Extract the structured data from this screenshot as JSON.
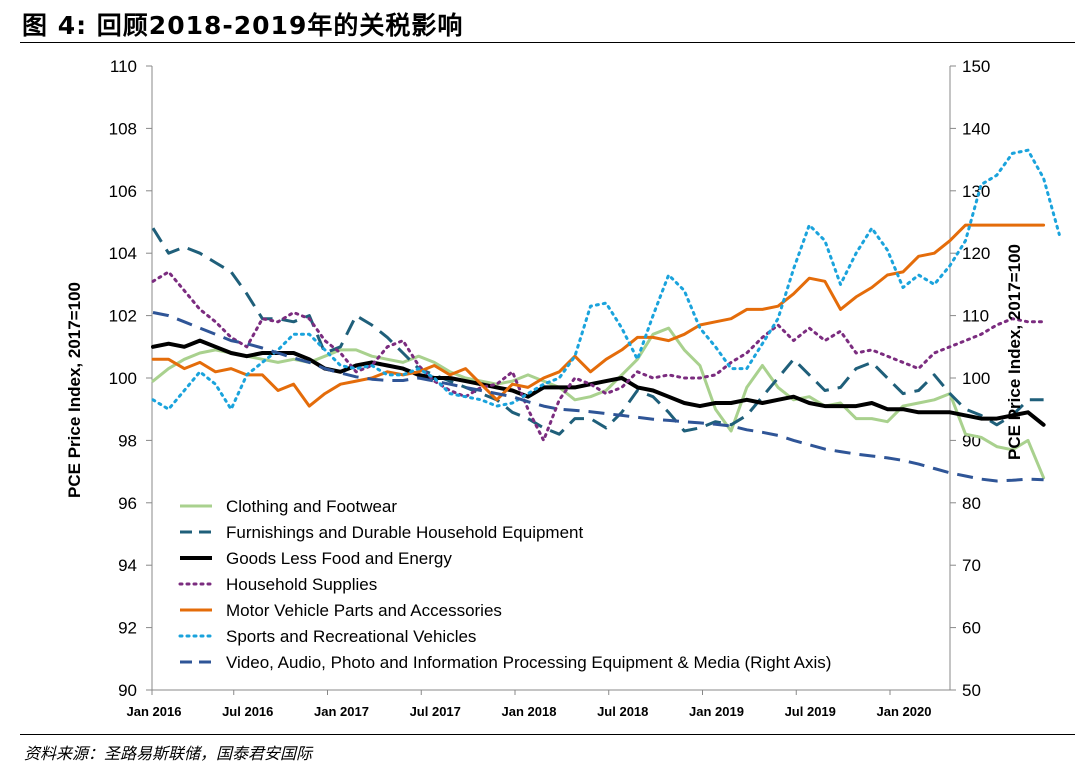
{
  "figure": {
    "title": "图 4:  回顾2018-2019年的关税影响",
    "source": "资料来源：圣路易斯联储，国泰君安国际"
  },
  "chart_data": {
    "type": "line",
    "ylabel": "PCE Price Index, 2017=100",
    "y2label": "PCE Price Index, 2017=100",
    "ylim": [
      90,
      110
    ],
    "y2lim": [
      50,
      150
    ],
    "yticks": [
      "90",
      "92",
      "94",
      "96",
      "98",
      "100",
      "102",
      "104",
      "106",
      "108",
      "110"
    ],
    "y2ticks": [
      "50",
      "60",
      "70",
      "80",
      "90",
      "100",
      "110",
      "120",
      "130",
      "140",
      "150"
    ],
    "x_ticks": [
      "Jan 2016",
      "Jul 2016",
      "Jan 2017",
      "Jul 2017",
      "Jan 2018",
      "Jul 2018",
      "Jan 2019",
      "Jul 2019",
      "Jan 2020"
    ],
    "x_start": "Jan 2016",
    "x_end": "Apr 2020",
    "legend_position": "lower-left",
    "series": [
      {
        "name": "Clothing and Footwear",
        "axis": "left",
        "color": "#a9d18e",
        "style": "solid",
        "width": 3,
        "values": [
          99.9,
          100.3,
          100.6,
          100.8,
          100.9,
          100.8,
          100.7,
          100.6,
          100.5,
          100.6,
          100.5,
          100.7,
          100.9,
          100.9,
          100.7,
          100.6,
          100.5,
          100.7,
          100.5,
          100.2,
          100.0,
          99.9,
          99.8,
          99.9,
          100.1,
          99.9,
          99.7,
          99.3,
          99.4,
          99.6,
          100.1,
          100.6,
          101.4,
          101.6,
          100.9,
          100.4,
          99.0,
          98.3,
          99.7,
          100.4,
          99.7,
          99.3,
          99.4,
          99.1,
          99.2,
          98.7,
          98.7,
          98.6,
          99.1,
          99.2,
          99.3,
          99.5,
          98.2,
          98.1,
          97.8,
          97.7,
          98.0,
          96.8
        ]
      },
      {
        "name": "Furnishings and Durable Household Equipment",
        "axis": "left",
        "color": "#1f5f7a",
        "style": "dash",
        "width": 3,
        "values": [
          104.8,
          104.0,
          104.2,
          104.0,
          103.7,
          103.4,
          102.7,
          101.9,
          101.9,
          101.8,
          102.0,
          100.8,
          101.0,
          102.0,
          101.7,
          101.3,
          100.8,
          100.3,
          100.1,
          99.9,
          99.7,
          99.5,
          99.3,
          98.9,
          98.7,
          98.4,
          98.2,
          98.7,
          98.7,
          98.4,
          98.9,
          99.6,
          99.4,
          98.9,
          98.3,
          98.4,
          98.6,
          98.5,
          98.8,
          99.4,
          100.0,
          100.6,
          100.1,
          99.6,
          99.7,
          100.3,
          100.5,
          100.0,
          99.5,
          99.6,
          100.1,
          99.5,
          99.0,
          98.8,
          98.5,
          98.8,
          99.3,
          99.3
        ]
      },
      {
        "name": "Goods Less Food and Energy",
        "axis": "left",
        "color": "#000000",
        "style": "solid",
        "width": 4,
        "values": [
          101.0,
          101.1,
          101.0,
          101.2,
          101.0,
          100.8,
          100.7,
          100.8,
          100.8,
          100.8,
          100.6,
          100.3,
          100.2,
          100.4,
          100.5,
          100.4,
          100.3,
          100.1,
          100.0,
          100.0,
          99.9,
          99.8,
          99.7,
          99.6,
          99.4,
          99.7,
          99.7,
          99.7,
          99.8,
          99.9,
          100.0,
          99.7,
          99.6,
          99.4,
          99.2,
          99.1,
          99.2,
          99.2,
          99.3,
          99.2,
          99.3,
          99.4,
          99.2,
          99.1,
          99.1,
          99.1,
          99.2,
          99.0,
          99.0,
          98.9,
          98.9,
          98.9,
          98.8,
          98.7,
          98.7,
          98.8,
          98.9,
          98.5
        ]
      },
      {
        "name": "Household Supplies",
        "axis": "left",
        "color": "#7b2c7f",
        "style": "dot",
        "width": 3,
        "values": [
          103.1,
          103.4,
          102.8,
          102.2,
          101.8,
          101.3,
          101.0,
          101.9,
          101.8,
          102.1,
          101.9,
          101.2,
          100.8,
          100.2,
          100.4,
          101.0,
          101.2,
          100.4,
          99.9,
          99.6,
          99.4,
          99.7,
          99.8,
          100.2,
          99.0,
          98.0,
          99.3,
          100.0,
          99.8,
          99.5,
          99.7,
          100.2,
          100.0,
          100.1,
          100.0,
          100.0,
          100.1,
          100.5,
          100.8,
          101.3,
          101.7,
          101.2,
          101.6,
          101.2,
          101.5,
          100.8,
          100.9,
          100.7,
          100.5,
          100.3,
          100.8,
          101.0,
          101.2,
          101.4,
          101.7,
          101.9,
          101.8,
          101.8
        ]
      },
      {
        "name": "Motor Vehicle Parts and Accessories",
        "axis": "left",
        "color": "#e46c0a",
        "style": "solid",
        "width": 3,
        "values": [
          100.6,
          100.6,
          100.3,
          100.5,
          100.2,
          100.3,
          100.1,
          100.1,
          99.6,
          99.8,
          99.1,
          99.5,
          99.8,
          99.9,
          100.0,
          100.2,
          100.1,
          100.2,
          100.4,
          100.1,
          100.3,
          99.8,
          99.3,
          99.8,
          99.7,
          100.0,
          100.2,
          100.7,
          100.2,
          100.6,
          100.9,
          101.3,
          101.3,
          101.2,
          101.4,
          101.7,
          101.8,
          101.9,
          102.2,
          102.2,
          102.3,
          102.7,
          103.2,
          103.1,
          102.2,
          102.6,
          102.9,
          103.3,
          103.4,
          103.9,
          104.0,
          104.4,
          104.9,
          104.9,
          104.9,
          104.9,
          104.9,
          104.9
        ]
      },
      {
        "name": "Sports and Recreational Vehicles",
        "axis": "left",
        "color": "#1aa3dc",
        "style": "dot",
        "width": 3,
        "values": [
          99.3,
          99.0,
          99.6,
          100.2,
          99.8,
          99.0,
          100.1,
          100.5,
          100.9,
          101.4,
          101.4,
          100.9,
          100.4,
          100.3,
          100.4,
          100.1,
          100.1,
          100.3,
          100.0,
          99.5,
          99.4,
          99.3,
          99.1,
          99.2,
          99.5,
          99.8,
          100.0,
          100.7,
          102.3,
          102.4,
          101.6,
          100.6,
          102.0,
          103.3,
          102.8,
          101.6,
          101.0,
          100.3,
          100.3,
          101.1,
          101.9,
          103.5,
          104.9,
          104.4,
          103.0,
          104.0,
          104.8,
          104.1,
          102.9,
          103.3,
          103.0,
          103.6,
          104.4,
          106.2,
          106.5,
          107.2,
          107.3,
          106.4,
          104.6
        ]
      },
      {
        "name": "Video, Audio, Photo and Information Processing Equipment & Media (Right Axis)",
        "axis": "right",
        "color": "#2f5597",
        "style": "dash",
        "width": 3,
        "values": [
          110.5,
          110.0,
          109.0,
          108.0,
          107.0,
          106.0,
          105.5,
          104.8,
          104.0,
          103.2,
          102.5,
          101.5,
          100.8,
          100.2,
          99.8,
          99.6,
          99.6,
          100.0,
          99.5,
          99.0,
          98.5,
          98.0,
          97.5,
          97.0,
          96.2,
          95.5,
          95.0,
          94.8,
          94.6,
          94.3,
          94.0,
          93.7,
          93.4,
          93.2,
          93.0,
          92.8,
          92.6,
          92.3,
          91.7,
          91.3,
          90.8,
          90.0,
          89.3,
          88.6,
          88.2,
          87.8,
          87.5,
          87.2,
          86.8,
          86.2,
          85.5,
          84.8,
          84.3,
          83.8,
          83.5,
          83.6,
          83.8,
          83.7
        ]
      }
    ]
  }
}
